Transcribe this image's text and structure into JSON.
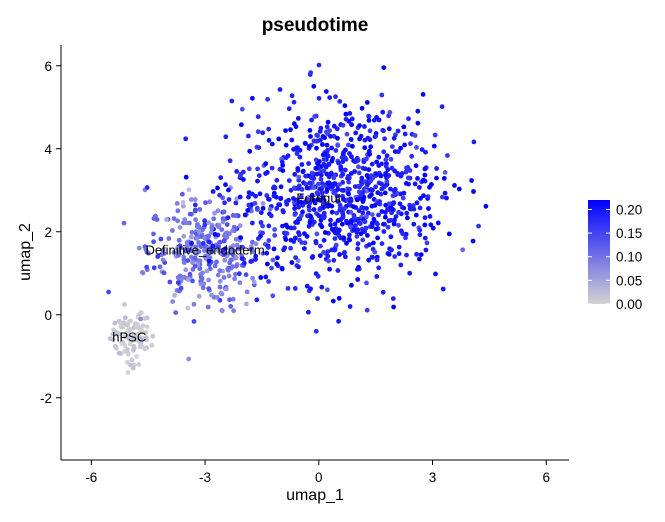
{
  "chart_data": {
    "type": "scatter",
    "title": "pseudotime",
    "xlabel": "umap_1",
    "ylabel": "umap_2",
    "xlim": [
      -6.8,
      6.6
    ],
    "ylim": [
      -3.5,
      6.5
    ],
    "xticks": [
      -6,
      -3,
      0,
      3,
      6
    ],
    "xtick_labels": [
      "-6",
      "-3",
      "0",
      "3",
      "6"
    ],
    "yticks": [
      -2,
      0,
      2,
      4,
      6
    ],
    "ytick_labels": [
      "-2",
      "0",
      "2",
      "4",
      "6"
    ],
    "grid": false,
    "legend_position": "right",
    "color_scale": {
      "min": 0,
      "max": 0.22,
      "low_color": "#d3d3d3",
      "high_color": "#0000ff",
      "ticks": [
        0.0,
        0.05,
        0.1,
        0.15,
        0.2
      ],
      "tick_labels": [
        "0.00",
        "0.05",
        "0.10",
        "0.15",
        "0.20"
      ]
    },
    "clusters": [
      {
        "label": "hPSC",
        "center": [
          -4.95,
          -0.55
        ],
        "spread": [
          0.28,
          0.32
        ],
        "count": 90,
        "value_mean": 0.01,
        "value_sd": 0.008
      },
      {
        "label": "Definitive_endoderm",
        "center": [
          -3.0,
          1.55
        ],
        "spread": [
          0.75,
          0.65
        ],
        "count": 320,
        "value_mean": 0.1,
        "value_sd": 0.03
      },
      {
        "label": "Foregut",
        "center": [
          0.55,
          2.9
        ],
        "spread": [
          1.35,
          1.05
        ],
        "count": 900,
        "value_mean": 0.19,
        "value_sd": 0.025
      }
    ],
    "label_positions": [
      {
        "label": "hPSC",
        "x": -5.0,
        "y": -0.55
      },
      {
        "label": "Definitive_endoderm",
        "x": -3.0,
        "y": 1.55
      },
      {
        "label": "Foregut",
        "x": 0.0,
        "y": 2.8
      }
    ]
  }
}
